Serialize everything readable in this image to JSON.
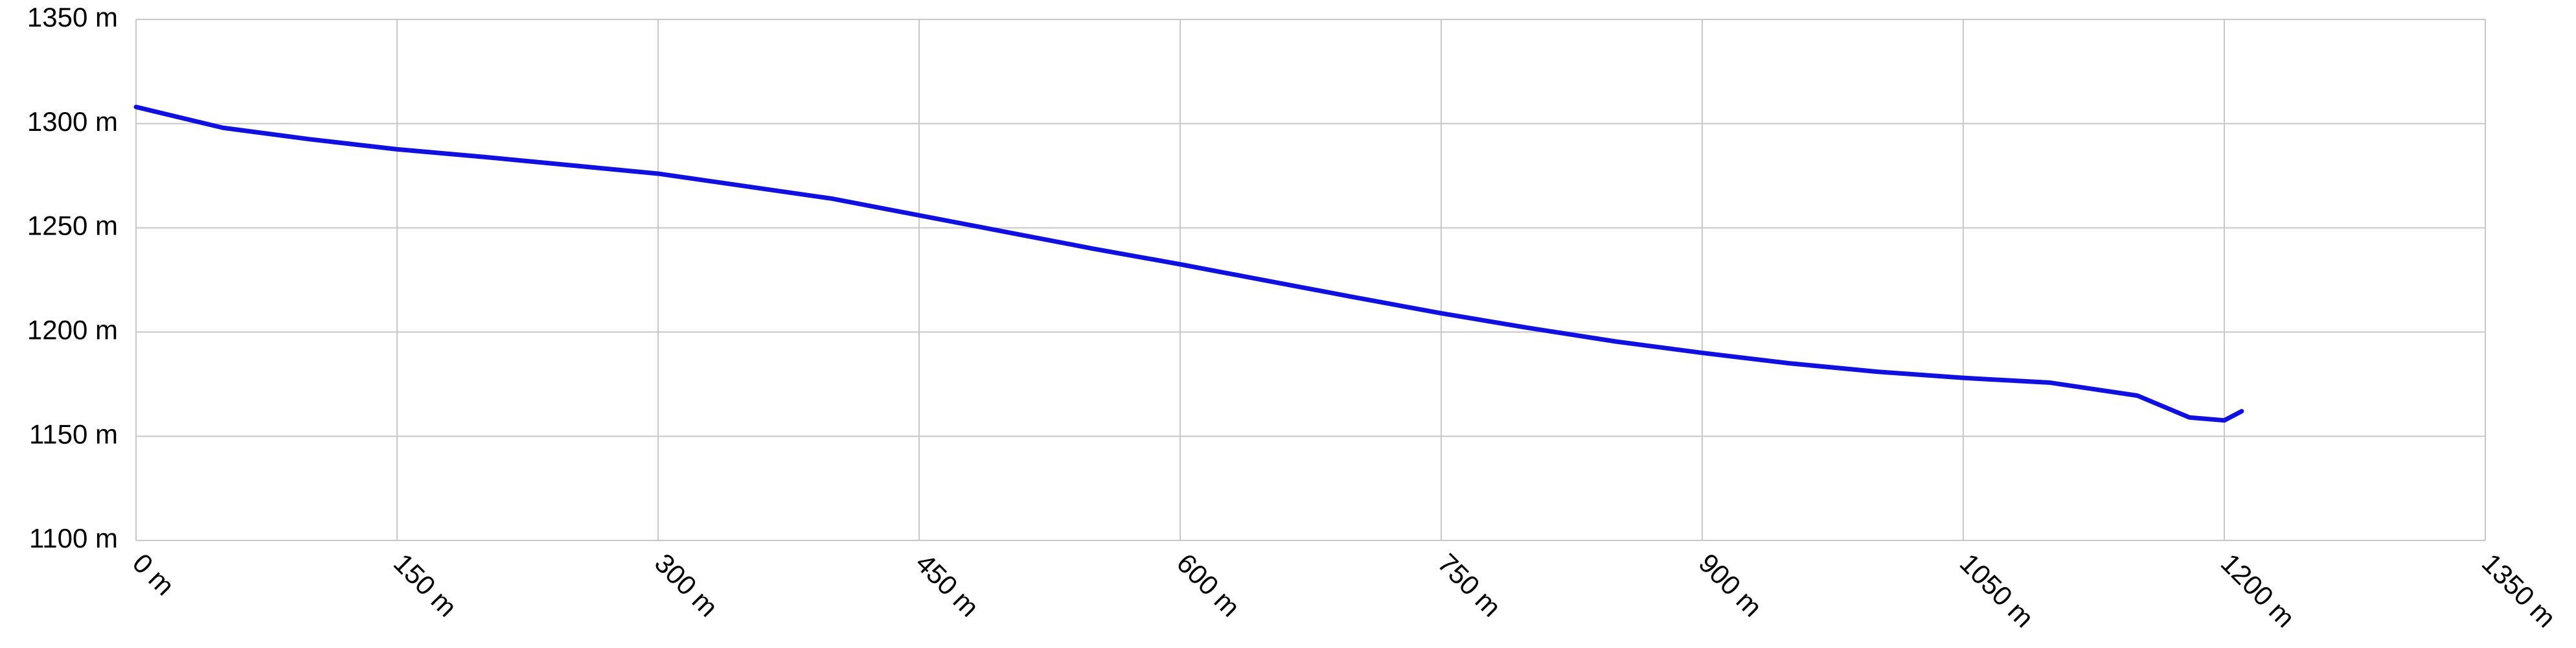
{
  "chart_data": {
    "type": "line",
    "x": [
      0,
      50,
      100,
      150,
      200,
      250,
      300,
      350,
      400,
      450,
      500,
      550,
      600,
      650,
      700,
      750,
      800,
      850,
      900,
      950,
      1000,
      1050,
      1100,
      1150,
      1180,
      1200,
      1210
    ],
    "series": [
      {
        "color": "#1010e0",
        "values": [
          1308,
          1298,
          1292.5,
          1287.7,
          1284,
          1280,
          1276,
          1270,
          1264,
          1256,
          1248,
          1240,
          1232.5,
          1224.6,
          1216.7,
          1209,
          1202,
          1195.5,
          1190,
          1185,
          1181,
          1178,
          1175.7,
          1169.5,
          1159,
          1157.6,
          1162
        ]
      }
    ],
    "xlim": [
      0,
      1350
    ],
    "ylim": [
      1100,
      1350
    ],
    "xticks": [
      {
        "value": 0,
        "label": "0 m"
      },
      {
        "value": 150,
        "label": "150 m"
      },
      {
        "value": 300,
        "label": "300 m"
      },
      {
        "value": 450,
        "label": "450 m"
      },
      {
        "value": 600,
        "label": "600 m"
      },
      {
        "value": 750,
        "label": "750 m"
      },
      {
        "value": 900,
        "label": "900 m"
      },
      {
        "value": 1050,
        "label": "1050 m"
      },
      {
        "value": 1200,
        "label": "1200 m"
      },
      {
        "value": 1350,
        "label": "1350 m"
      }
    ],
    "yticks": [
      {
        "value": 1100,
        "label": "1100 m"
      },
      {
        "value": 1150,
        "label": "1150 m"
      },
      {
        "value": 1200,
        "label": "1200 m"
      },
      {
        "value": 1250,
        "label": "1250 m"
      },
      {
        "value": 1300,
        "label": "1300 m"
      },
      {
        "value": 1350,
        "label": "1350 m"
      }
    ],
    "grid": true
  }
}
